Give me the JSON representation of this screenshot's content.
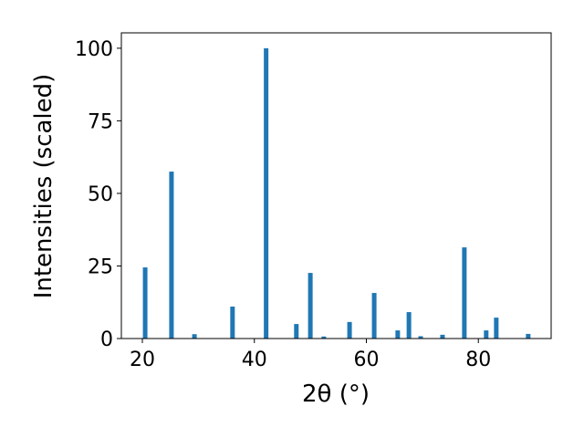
{
  "chart_data": {
    "type": "bar",
    "x": [
      20.5,
      25.2,
      29.3,
      36.1,
      42.1,
      47.5,
      50.0,
      52.4,
      57.0,
      61.4,
      65.6,
      67.6,
      69.7,
      73.6,
      77.5,
      81.4,
      83.2,
      88.9
    ],
    "values": [
      24.5,
      57.5,
      1.5,
      11,
      100,
      5,
      22.6,
      0.7,
      5.7,
      15.7,
      2.8,
      9.1,
      0.8,
      1.3,
      31.4,
      2.8,
      7.2,
      1.6
    ],
    "color": "#1f77b4",
    "xlabel": "2θ (°)",
    "ylabel": "Intensities (scaled)",
    "xlim": [
      16.25,
      93.0
    ],
    "xticks": [
      20,
      40,
      60,
      80
    ],
    "ylim": [
      0,
      105.3
    ],
    "yticks": [
      0,
      25,
      50,
      75,
      100
    ],
    "grid": false
  }
}
